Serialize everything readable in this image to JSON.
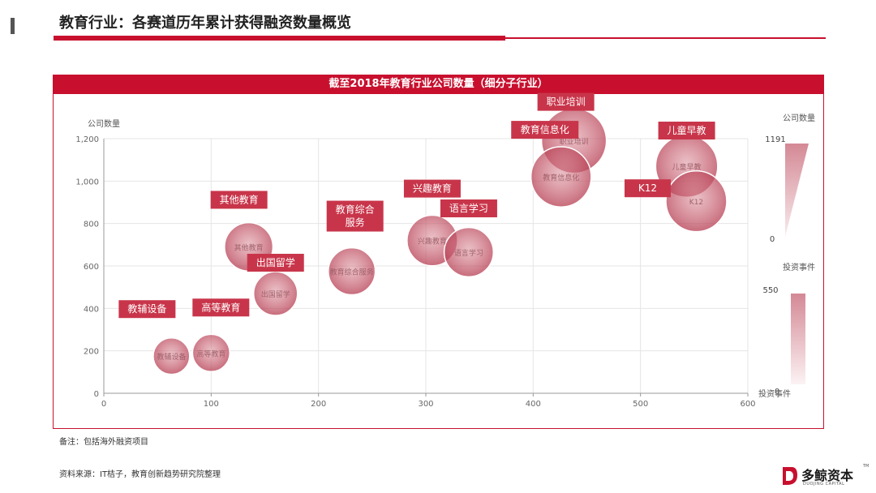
{
  "page": {
    "title": "教育行业：各赛道历年累计获得融资数量概览",
    "footnote": "备注：包括海外融资项目",
    "source": "资料来源：IT桔子，教育创新趋势研究院整理",
    "logo_text": "多鲸资本",
    "logo_sub": "DUOJING CAPITAL",
    "logo_tm": "TM"
  },
  "colors": {
    "accent": "#c8102e",
    "bubble": "#c8102e",
    "label_bg": "#c8354a",
    "grid": "#e5e5e5",
    "axis_text": "#666666"
  },
  "chart_data": {
    "type": "scatter",
    "title": "截至2018年教育行业公司数量（细分子行业）",
    "ylabel": "公司数量",
    "xlim": [
      0,
      600
    ],
    "ylim": [
      0,
      1200
    ],
    "x_ticks": [
      "0",
      "100",
      "200",
      "300",
      "400",
      "500",
      "600"
    ],
    "y_ticks": [
      "0",
      "200",
      "400",
      "600",
      "800",
      "1,000",
      "1,200"
    ],
    "size_legend": {
      "title": "投资事件",
      "max": "550",
      "min": "0",
      "label": "投资事件"
    },
    "color_legend": {
      "title": "公司数量",
      "max": "1191",
      "min": "0"
    },
    "points": [
      {
        "name": "教辅设备",
        "x": 63,
        "y": 175,
        "size": 40,
        "label": "教辅设备"
      },
      {
        "name": "高等教育",
        "x": 100,
        "y": 190,
        "size": 45,
        "label": "高等教育"
      },
      {
        "name": "其他教育",
        "x": 135,
        "y": 690,
        "size": 140,
        "label": "其他教育"
      },
      {
        "name": "出国留学",
        "x": 160,
        "y": 470,
        "size": 95,
        "label": "出国留学"
      },
      {
        "name": "教育综合服务",
        "x": 231,
        "y": 575,
        "size": 125,
        "label": "教育综合\n服务"
      },
      {
        "name": "兴趣教育",
        "x": 306,
        "y": 720,
        "size": 165,
        "label": "兴趣教育"
      },
      {
        "name": "语言学习",
        "x": 340,
        "y": 665,
        "size": 150,
        "label": "语言学习"
      },
      {
        "name": "教育信息化",
        "x": 426,
        "y": 1020,
        "size": 300,
        "label": "教育信息化"
      },
      {
        "name": "职业培训",
        "x": 438,
        "y": 1190,
        "size": 380,
        "label": "职业培训"
      },
      {
        "name": "儿童早教",
        "x": 543,
        "y": 1070,
        "size": 330,
        "label": "儿童早教"
      },
      {
        "name": "K12",
        "x": 552,
        "y": 905,
        "size": 310,
        "label": "K12"
      }
    ]
  }
}
